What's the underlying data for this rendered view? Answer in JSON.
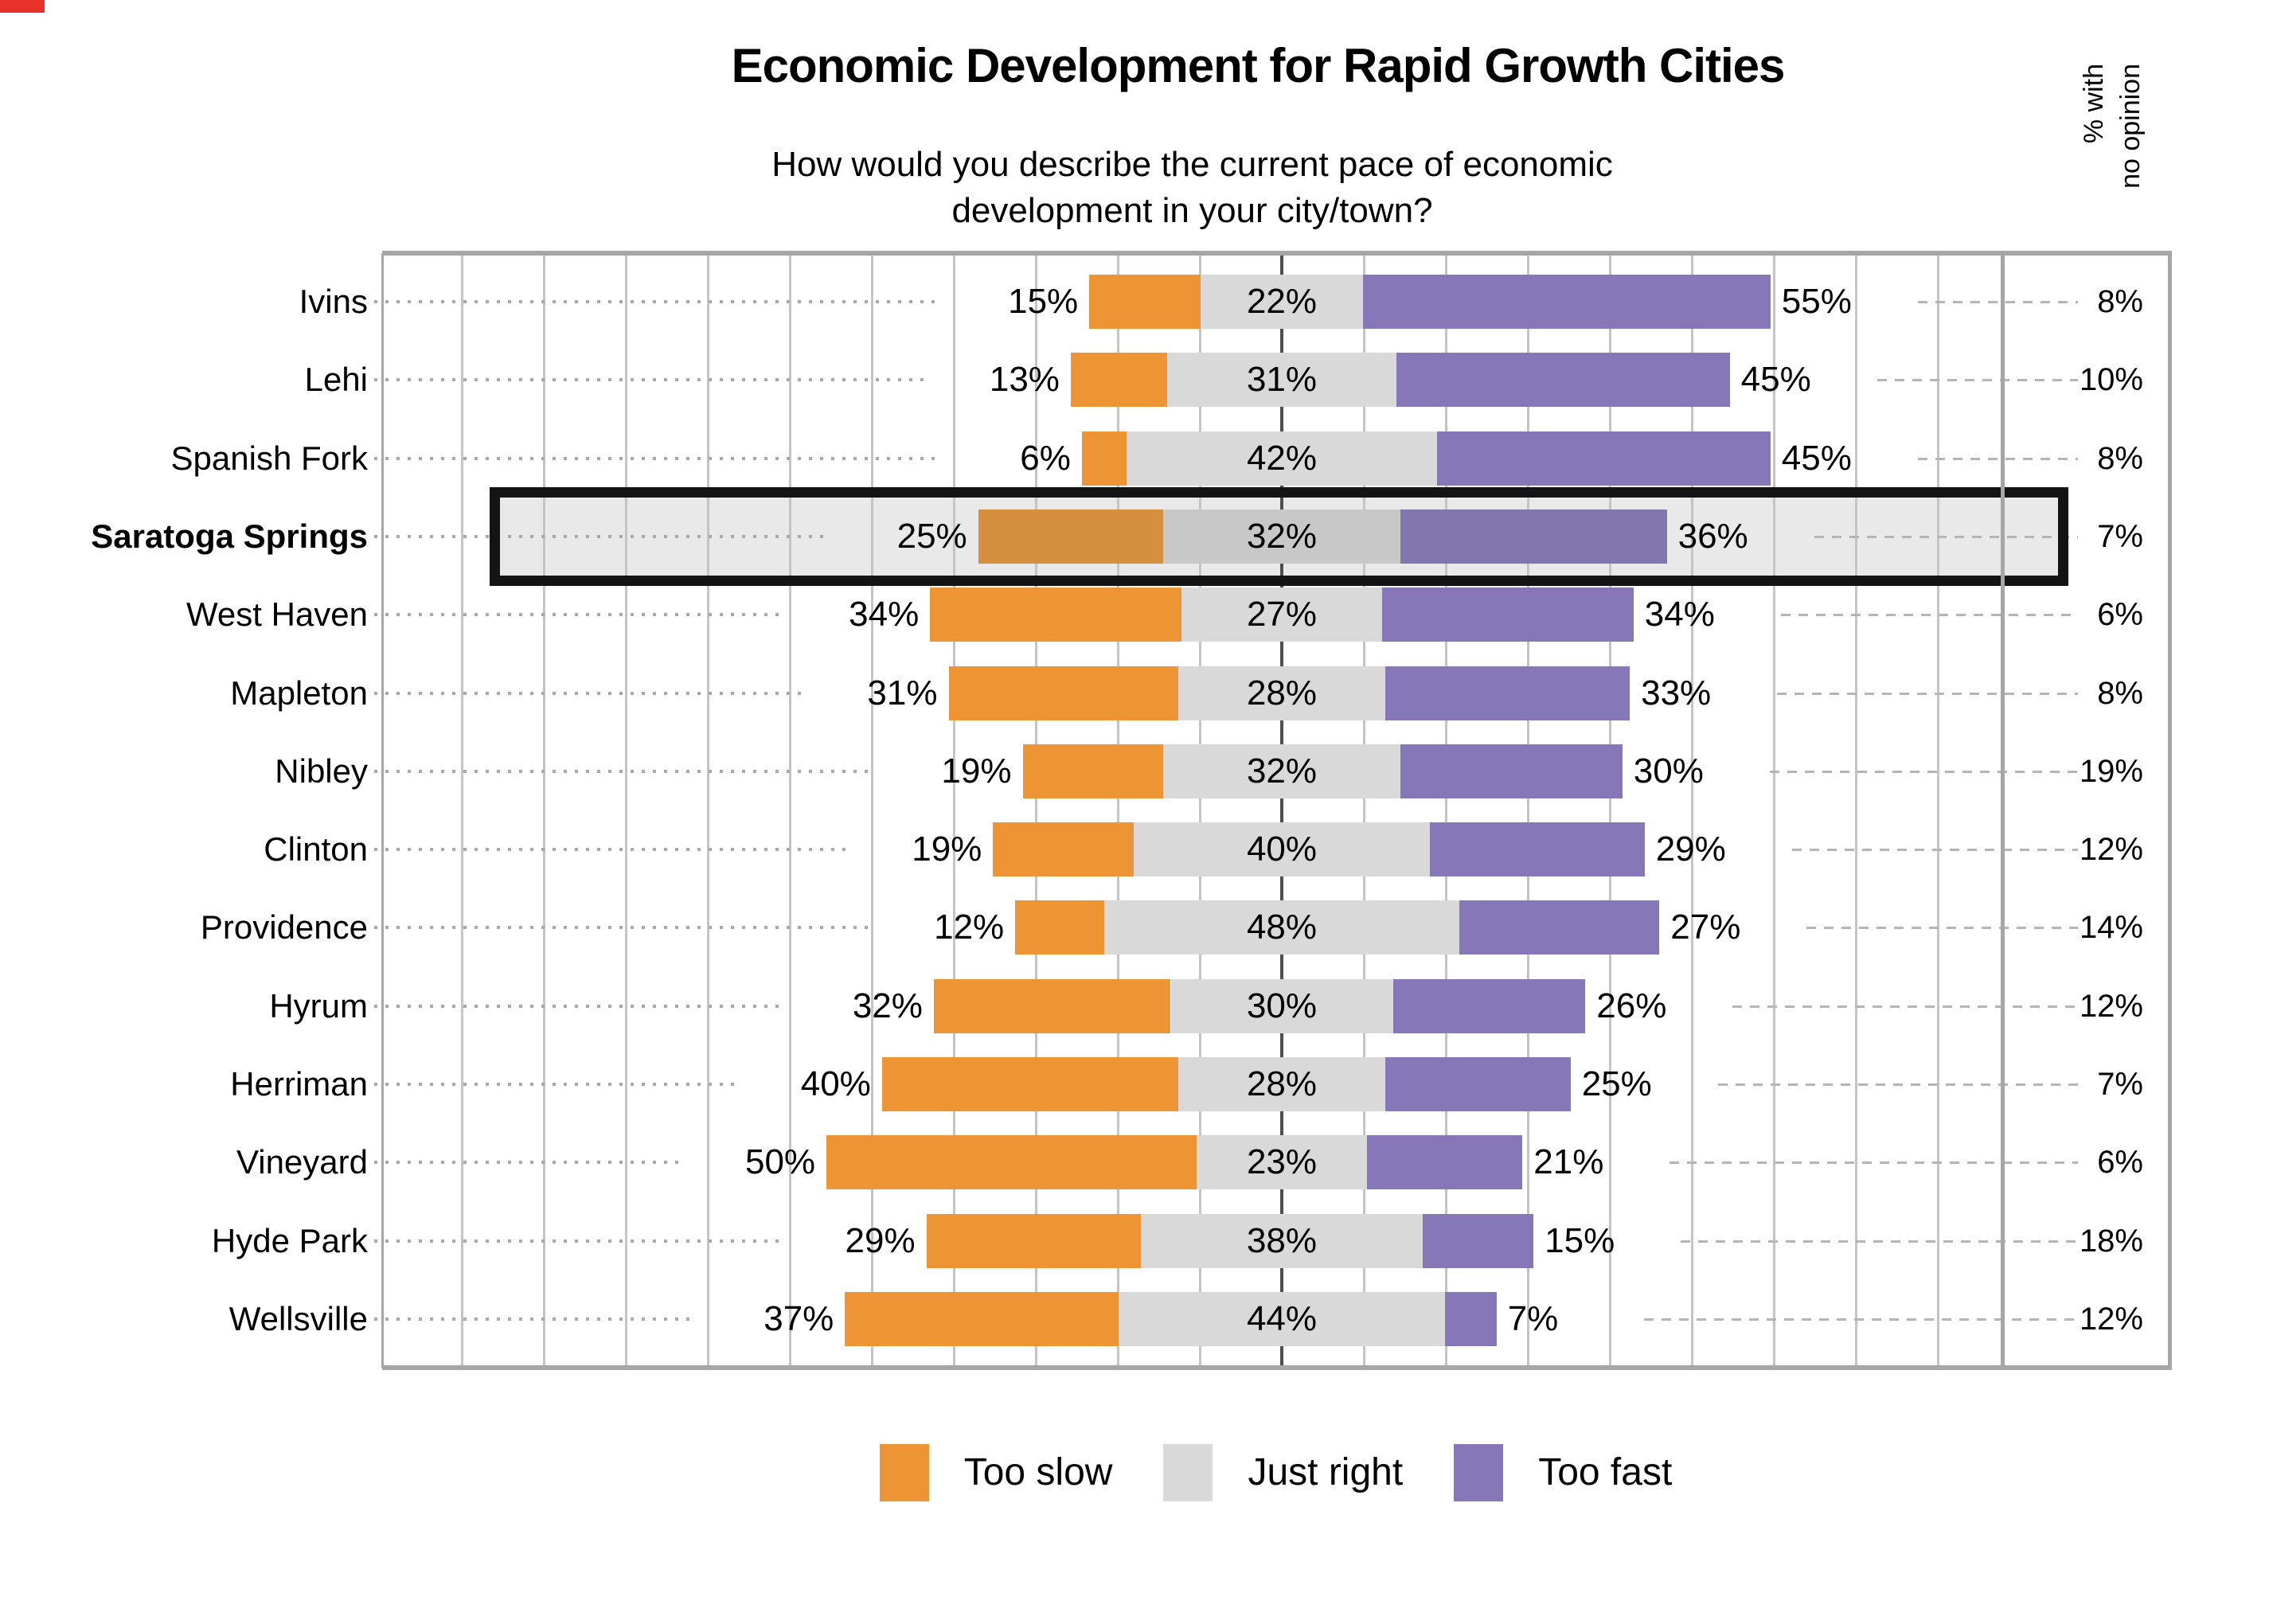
{
  "title": "Economic Development for Rapid Growth Cities",
  "subtitle_line1": "How would you describe the current pace of economic",
  "subtitle_line2": "development in your city/town?",
  "right_column_header_line1": "% with",
  "right_column_header_line2": "no opinion",
  "value_suffix": "%",
  "highlighted_city": "Saratoga Springs",
  "colors": {
    "too_slow": "#ED9434",
    "just_right": "#D9D9D9",
    "too_fast": "#8577B8",
    "too_slow_muted": "#D68F3F",
    "just_right_muted": "#C8C8C8",
    "too_fast_muted": "#8176AD",
    "highlight_fill": "#E9E9E9",
    "highlight_border": "#141414",
    "gridline": "#C4C4C4",
    "center_line": "#4F4F4F",
    "frame": "#A6A6A6",
    "corner_mark": "#E8312A"
  },
  "legend": [
    {
      "label": "Too slow",
      "color": "#ED9434"
    },
    {
      "label": "Just right",
      "color": "#D9D9D9"
    },
    {
      "label": "Too fast",
      "color": "#8577B8"
    }
  ],
  "chart_data": {
    "type": "bar",
    "variant": "horizontal-diverging-stacked",
    "alignment": "just-right-segment-centered-on-zero",
    "grid": true,
    "legend_position": "bottom",
    "title": "Economic Development for Rapid Growth Cities",
    "subtitle": "How would you describe the current pace of economic development in your city/town?",
    "categories": [
      "Ivins",
      "Lehi",
      "Spanish Fork",
      "Saratoga Springs",
      "West Haven",
      "Mapleton",
      "Nibley",
      "Clinton",
      "Providence",
      "Hyrum",
      "Herriman",
      "Vineyard",
      "Hyde Park",
      "Wellsville"
    ],
    "series": [
      {
        "name": "Too slow",
        "color": "#ED9434",
        "values": [
          15,
          13,
          6,
          25,
          34,
          31,
          19,
          19,
          12,
          32,
          40,
          50,
          29,
          37
        ]
      },
      {
        "name": "Just right",
        "color": "#D9D9D9",
        "values": [
          22,
          31,
          42,
          32,
          27,
          28,
          32,
          40,
          48,
          30,
          28,
          23,
          38,
          44
        ]
      },
      {
        "name": "Too fast",
        "color": "#8577B8",
        "values": [
          55,
          45,
          45,
          36,
          34,
          33,
          30,
          29,
          27,
          26,
          25,
          21,
          15,
          7
        ]
      }
    ],
    "no_opinion_column": {
      "header": "% with no opinion",
      "values": [
        8,
        10,
        8,
        7,
        6,
        8,
        19,
        12,
        14,
        12,
        7,
        6,
        18,
        12
      ]
    },
    "highlight": {
      "category": "Saratoga Springs",
      "style": "black-outline-box"
    }
  }
}
